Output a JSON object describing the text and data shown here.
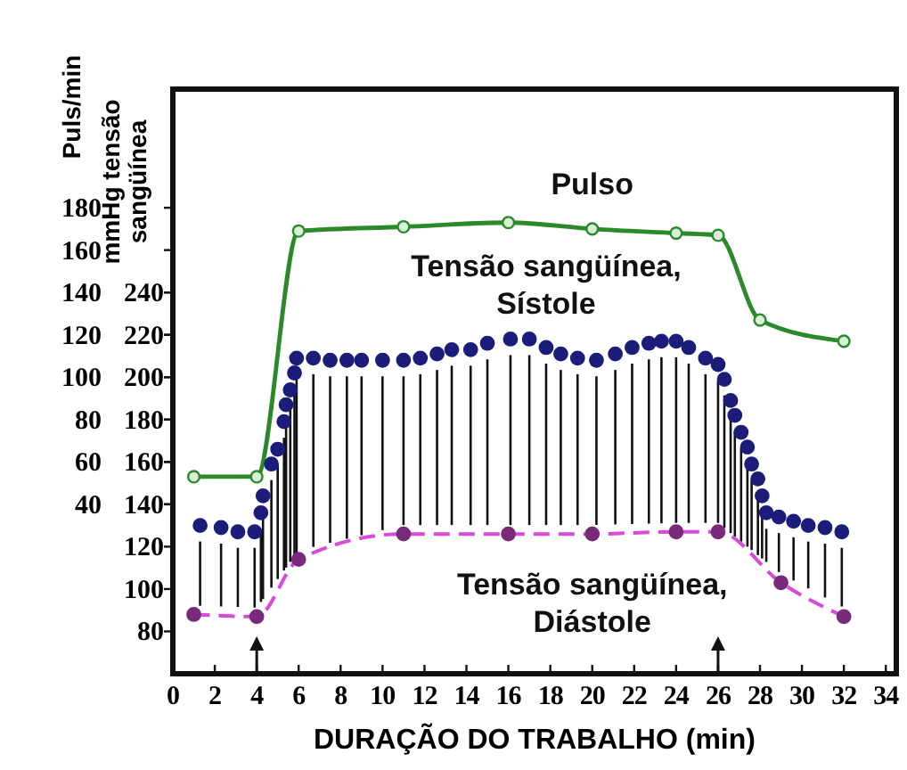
{
  "chart_data": {
    "type": "line",
    "xlabel": "DURAÇÃO DO TRABALHO (min)",
    "ylabel": "Puls/min",
    "y2label": "mmHg tensão sangüínea",
    "xlim": [
      0,
      34.5
    ],
    "xticks": [
      0,
      2,
      4,
      6,
      8,
      10,
      12,
      14,
      16,
      18,
      20,
      22,
      24,
      26,
      28,
      30,
      32,
      34
    ],
    "ylim": [
      -40,
      236
    ],
    "yticks": [
      40,
      60,
      80,
      100,
      120,
      140,
      160,
      180
    ],
    "y2lim": [
      60,
      336
    ],
    "y2ticks": [
      80,
      100,
      120,
      140,
      160,
      180,
      200,
      220,
      240
    ],
    "grid": false,
    "legend": false,
    "ref_lines": [
      {
        "axis": "x",
        "value": 4
      },
      {
        "axis": "x",
        "value": 26
      }
    ],
    "series": [
      {
        "name": "Pulso",
        "color": "#2a8a2a",
        "marker": "circle",
        "line_style": "solid",
        "x": [
          1,
          4,
          6,
          11,
          16,
          20,
          24,
          26,
          28,
          32
        ],
        "values": [
          53,
          53,
          169,
          171,
          173,
          170,
          168,
          167,
          127,
          117
        ]
      },
      {
        "name": "Tensão sangüínea, Sístole",
        "type": "scatter",
        "axis": "y2",
        "color": "#1c1c7a",
        "marker": "circle",
        "x": [
          1.3,
          2.3,
          3.1,
          3.9,
          4.2,
          4.3,
          4.7,
          5,
          5.3,
          5.4,
          5.6,
          5.8,
          5.9,
          6.7,
          7.5,
          8.3,
          9,
          10,
          11,
          11.8,
          12.6,
          13.3,
          14.2,
          15,
          16.1,
          17,
          17.8,
          18.5,
          19.3,
          20.2,
          21.1,
          21.9,
          22.7,
          23.3,
          24,
          24.6,
          25.4,
          26,
          26.3,
          26.6,
          26.8,
          27.1,
          27.4,
          27.6,
          27.9,
          28.1,
          28.3,
          28.9,
          29.6,
          30.3,
          31.1,
          31.9
        ],
        "values": [
          130,
          129,
          127,
          127,
          136,
          144,
          159,
          166,
          179,
          187,
          194,
          202,
          209,
          209,
          208,
          208,
          208,
          208,
          208,
          209,
          211,
          213,
          213,
          216,
          218,
          218,
          214,
          211,
          209,
          208,
          211,
          214,
          216,
          217,
          217,
          214,
          209,
          206,
          199,
          189,
          182,
          174,
          167,
          159,
          152,
          144,
          136,
          134,
          132,
          130,
          129,
          127
        ]
      },
      {
        "name": "Tensão sangüínea, Diástole",
        "axis": "y2",
        "color": "#d84ad8",
        "marker": "circle",
        "line_style": "dashed",
        "x": [
          1,
          4,
          6,
          11,
          16,
          20,
          24,
          26,
          29,
          32
        ],
        "values": [
          88,
          87,
          114,
          126,
          126,
          126,
          127,
          127,
          103,
          87
        ]
      }
    ]
  }
}
